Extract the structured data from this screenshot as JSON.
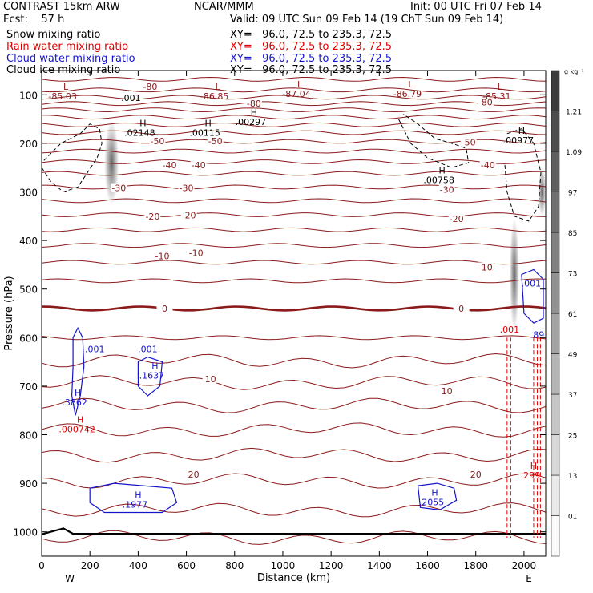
{
  "header": {
    "left1": "CONTRAST 15km ARW",
    "left2": "Fcst:    57 h",
    "center": "NCAR/MMM",
    "init": "Init: 00 UTC Fri 07 Feb 14",
    "valid": "Valid: 09 UTC Sun 09 Feb 14 (19 ChT Sun 09 Feb 14)",
    "fields": [
      {
        "name": "Snow mixing ratio",
        "xy": "XY=   96.0, 72.5 to 235.3, 72.5",
        "color": "#000000"
      },
      {
        "name": "Rain water mixing ratio",
        "xy": "XY=   96.0, 72.5 to 235.3, 72.5",
        "color": "#dd0000"
      },
      {
        "name": "Cloud water mixing ratio",
        "xy": "XY=   96.0, 72.5 to 235.3, 72.5",
        "color": "#1515cc"
      },
      {
        "name": "Cloud ice mixing ratio",
        "xy": "XY=   96.0, 72.5 to 235.3, 72.5",
        "color": "#000000"
      }
    ]
  },
  "chart_data": {
    "type": "contour",
    "xlabel": "Distance (km)",
    "ylabel": "Pressure (hPa)",
    "xlim": [
      0,
      2090
    ],
    "ylim": [
      1050,
      50
    ],
    "x_ticks": [
      0,
      200,
      400,
      600,
      800,
      1000,
      1200,
      1400,
      1600,
      1800,
      2000
    ],
    "y_ticks": [
      100,
      200,
      300,
      400,
      500,
      600,
      700,
      800,
      900,
      1000
    ],
    "x_end_labels": {
      "left": "W",
      "right": "E"
    },
    "colorbar": {
      "unit": "g kg⁻¹",
      "levels": [
        ".01",
        ".13",
        ".25",
        ".37",
        ".49",
        ".61",
        ".73",
        ".85",
        ".97",
        "1.09",
        "1.21"
      ]
    },
    "temperature_contours": {
      "color": "#8b1a1a",
      "levels_labeled": [
        {
          "label": "-80",
          "x": 450,
          "p": 83
        },
        {
          "label": "-80",
          "x": 880,
          "p": 118
        },
        {
          "label": "-80",
          "x": 1840,
          "p": 115
        },
        {
          "label": "-50",
          "x": 480,
          "p": 195
        },
        {
          "label": "-50",
          "x": 720,
          "p": 195
        },
        {
          "label": "-50",
          "x": 1770,
          "p": 198
        },
        {
          "label": "-40",
          "x": 530,
          "p": 245
        },
        {
          "label": "-40",
          "x": 650,
          "p": 245
        },
        {
          "label": "-40",
          "x": 1850,
          "p": 245
        },
        {
          "label": "-30",
          "x": 320,
          "p": 292
        },
        {
          "label": "-30",
          "x": 600,
          "p": 292
        },
        {
          "label": "-30",
          "x": 1680,
          "p": 295
        },
        {
          "label": "-20",
          "x": 460,
          "p": 350
        },
        {
          "label": "-20",
          "x": 610,
          "p": 348
        },
        {
          "label": "-20",
          "x": 1720,
          "p": 355
        },
        {
          "label": "-10",
          "x": 500,
          "p": 432
        },
        {
          "label": "-10",
          "x": 640,
          "p": 425
        },
        {
          "label": "-10",
          "x": 1840,
          "p": 455
        },
        {
          "label": "0",
          "x": 510,
          "p": 540
        },
        {
          "label": "0",
          "x": 1740,
          "p": 540
        },
        {
          "label": "10",
          "x": 700,
          "p": 685
        },
        {
          "label": "10",
          "x": 1680,
          "p": 710
        },
        {
          "label": "20",
          "x": 630,
          "p": 882
        },
        {
          "label": "20",
          "x": 1800,
          "p": 882
        }
      ],
      "lines_p": [
        68,
        90,
        105,
        118,
        131,
        146,
        162,
        178,
        196,
        216,
        238,
        262,
        290,
        318,
        347,
        378,
        410,
        445,
        483,
        540,
        600,
        648,
        693,
        740,
        790,
        842,
        895,
        955,
        1012
      ]
    },
    "extrema_labels": [
      {
        "type": "L",
        "value": "-85.03",
        "x": 100,
        "p": 90,
        "color": "#8b1a1a"
      },
      {
        "type": "L",
        "value": "-86.85",
        "x": 730,
        "p": 90,
        "color": "#8b1a1a"
      },
      {
        "type": "L",
        "value": "-87.04",
        "x": 1070,
        "p": 85,
        "color": "#8b1a1a"
      },
      {
        "type": "L",
        "value": "-86.79",
        "x": 1530,
        "p": 85,
        "color": "#8b1a1a"
      },
      {
        "type": "L",
        "value": "-85.31",
        "x": 1900,
        "p": 90,
        "color": "#8b1a1a"
      },
      {
        "type": "H",
        "value": ".02148",
        "x": 420,
        "p": 165,
        "color": "#000000"
      },
      {
        "type": "H",
        "value": ".00115",
        "x": 690,
        "p": 165,
        "color": "#000000"
      },
      {
        "type": "H",
        "value": ".00297",
        "x": 880,
        "p": 142,
        "color": "#000000"
      },
      {
        "type": "H",
        "value": ".00977",
        "x": 1990,
        "p": 180,
        "color": "#000000"
      },
      {
        "type": "H",
        "value": ".00758",
        "x": 1660,
        "p": 262,
        "color": "#000000"
      },
      {
        "type": "H",
        "value": ".3862",
        "x": 150,
        "p": 720,
        "color": "#1515cc"
      },
      {
        "type": "H",
        "value": ".1637",
        "x": 470,
        "p": 665,
        "color": "#1515cc"
      },
      {
        "type": "H",
        "value": ".1977",
        "x": 400,
        "p": 930,
        "color": "#1515cc"
      },
      {
        "type": "H",
        "value": ".2055",
        "x": 1630,
        "p": 925,
        "color": "#1515cc"
      },
      {
        "type": "H",
        "value": ".000742",
        "x": 160,
        "p": 775,
        "color": "#dd0000"
      },
      {
        "type": "H",
        "value": ".299",
        "x": 2040,
        "p": 870,
        "color": "#dd0000"
      }
    ],
    "other_labels": [
      {
        "label": ".001",
        "x": 370,
        "p": 113,
        "color": "#000000"
      },
      {
        "label": ".001",
        "x": 220,
        "p": 630,
        "color": "#1515cc"
      },
      {
        "label": ".001",
        "x": 440,
        "p": 630,
        "color": "#1515cc"
      },
      {
        "label": ".001",
        "x": 2030,
        "p": 495,
        "color": "#1515cc"
      },
      {
        "label": ".001",
        "x": 1940,
        "p": 590,
        "color": "#dd0000"
      },
      {
        "label": ".89",
        "x": 2055,
        "p": 600,
        "color": "#1515cc"
      }
    ]
  }
}
